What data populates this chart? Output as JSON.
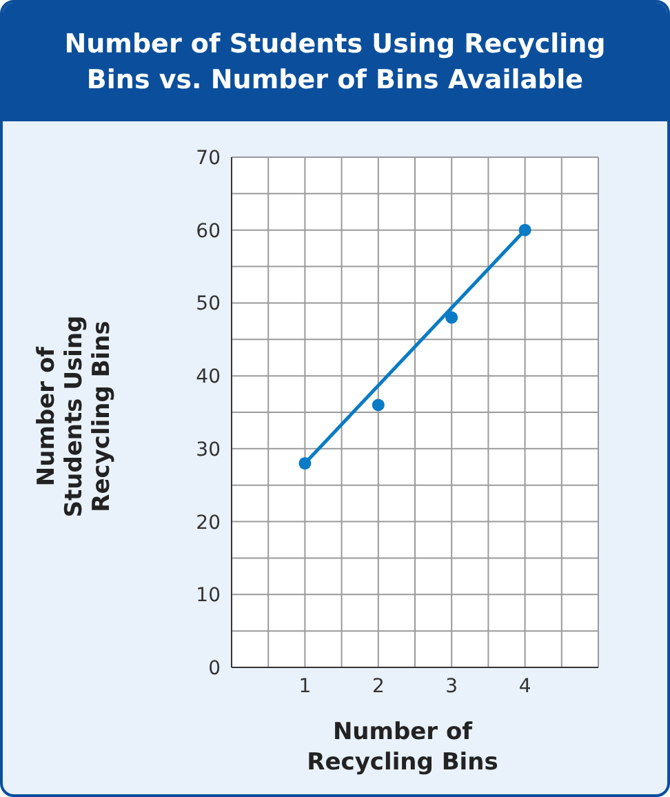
{
  "chart_data": {
    "type": "scatter",
    "title": "Number of Students Using Recycling Bins vs. Number of Bins Available",
    "xlabel": "Number of Recycling Bins",
    "ylabel": "Number of Students Using Recycling Bins",
    "x": [
      1,
      2,
      3,
      4
    ],
    "series": [
      {
        "color": "#0a7bc4",
        "values": [
          28,
          36,
          48,
          60
        ],
        "marker": "circle"
      },
      {
        "type": "line",
        "color": "#0a7bc4",
        "x": [
          1,
          4
        ],
        "values": [
          28,
          60
        ],
        "marker": "none"
      }
    ],
    "xlim": [
      0,
      5
    ],
    "xticks": [
      {
        "value": 0,
        "label": null
      },
      {
        "value": 0.5,
        "label": null
      },
      1,
      {
        "value": 1.5,
        "label": null
      },
      2,
      {
        "value": 2.5,
        "label": null
      },
      3,
      {
        "value": 3.5,
        "label": null
      },
      4,
      {
        "value": 4.5,
        "label": null
      },
      {
        "value": 5,
        "label": null
      }
    ],
    "ylim": [
      0,
      70
    ],
    "yticks": [
      0,
      {
        "value": 5,
        "label": null
      },
      10,
      {
        "value": 15,
        "label": null
      },
      20,
      {
        "value": 25,
        "label": null
      },
      30,
      {
        "value": 35,
        "label": null
      },
      40,
      {
        "value": 45,
        "label": null
      },
      50,
      {
        "value": 55,
        "label": null
      },
      60,
      {
        "value": 65,
        "label": null
      },
      70
    ],
    "grid": true,
    "line_style": "solid"
  }
}
